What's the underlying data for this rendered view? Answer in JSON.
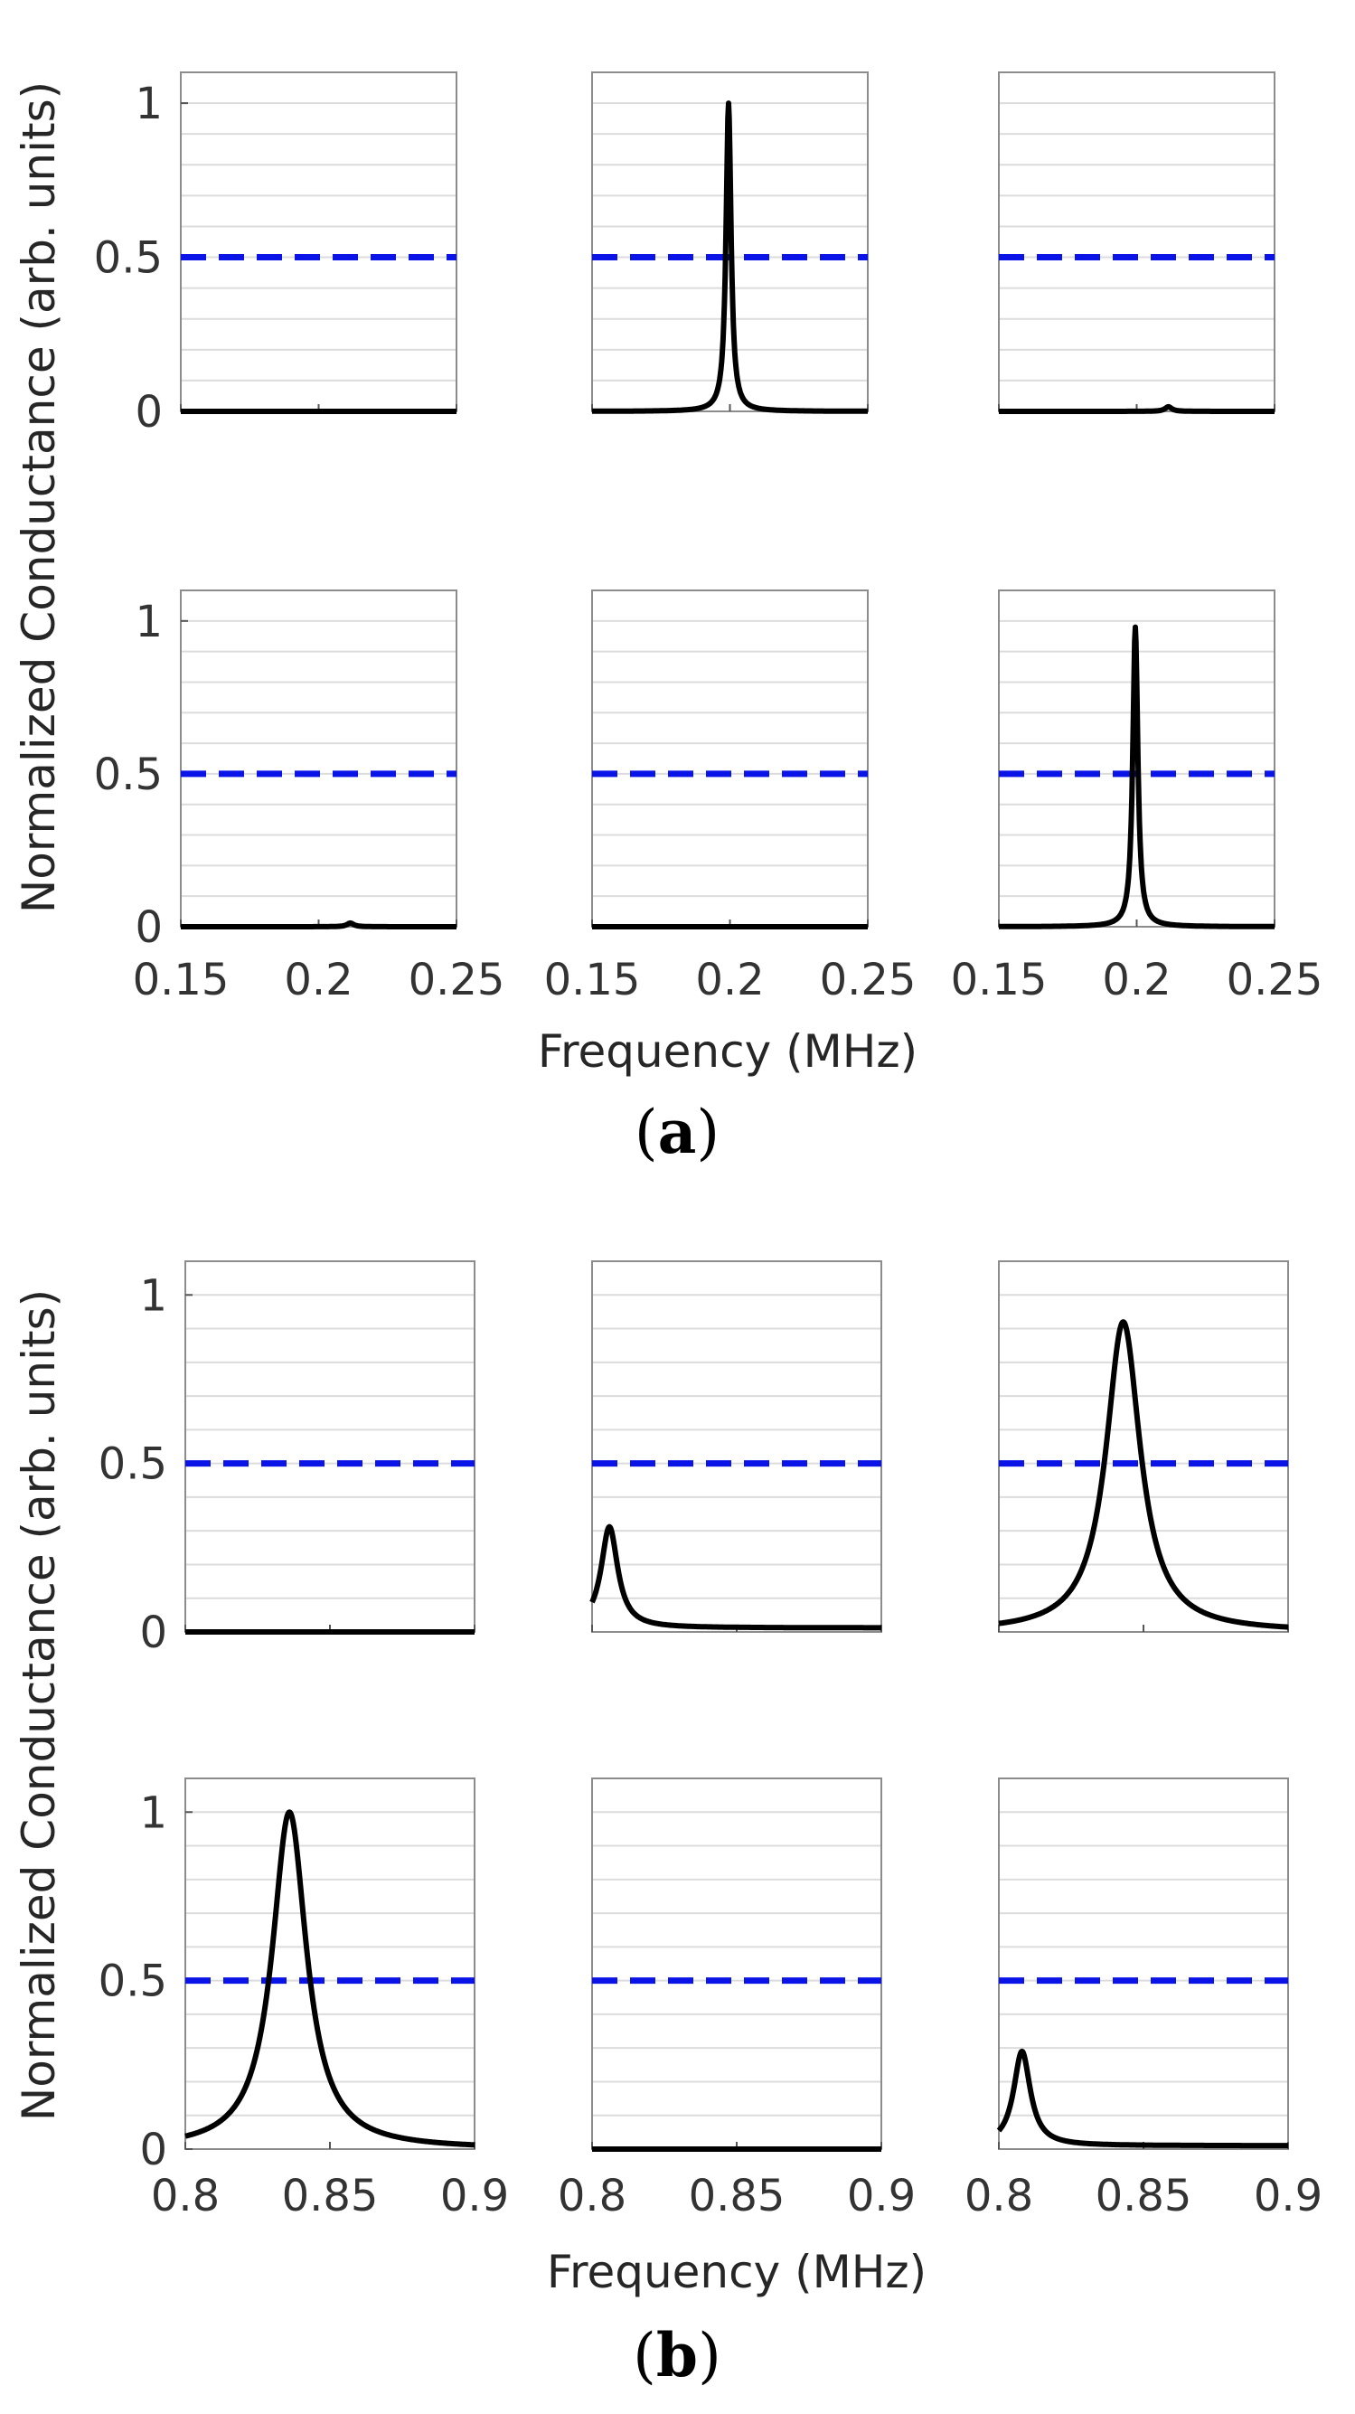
{
  "figure": {
    "subfigures": [
      {
        "id": "a",
        "open": "(",
        "letter": "a",
        "close": ")"
      },
      {
        "id": "b",
        "open": "(",
        "letter": "b",
        "close": ")"
      }
    ]
  },
  "chart_data": [
    {
      "type": "line",
      "panel": "a",
      "grid_layout": "2x3",
      "ylabel": "Normalized Conductance (arb. units)",
      "xlabel": "Frequency (MHz)",
      "xlim": [
        0.15,
        0.25
      ],
      "ylim": [
        0,
        1.1
      ],
      "xticks": [
        0.15,
        0.2,
        0.25
      ],
      "xtick_labels": [
        "0.15",
        "0.2",
        "0.25"
      ],
      "yticks": [
        0,
        0.5,
        1
      ],
      "ytick_labels": [
        "0",
        "0.5",
        "1"
      ],
      "threshold": {
        "value": 0.5,
        "color": "#0a14e6",
        "style": "dashed"
      },
      "curve_color": "#000000",
      "subplots": [
        {
          "row": 1,
          "col": 1,
          "peaks": [
            {
              "f0": 0.2,
              "amplitude": 0.0,
              "width": 0.002
            }
          ],
          "baseline": 0.0
        },
        {
          "row": 1,
          "col": 2,
          "peaks": [
            {
              "f0": 0.1995,
              "amplitude": 1.0,
              "width": 0.0011
            }
          ],
          "baseline": 0.0
        },
        {
          "row": 1,
          "col": 3,
          "peaks": [
            {
              "f0": 0.2115,
              "amplitude": 0.015,
              "width": 0.0015
            }
          ],
          "baseline": 0.0
        },
        {
          "row": 2,
          "col": 1,
          "peaks": [
            {
              "f0": 0.2115,
              "amplitude": 0.012,
              "width": 0.0015
            }
          ],
          "baseline": 0.0
        },
        {
          "row": 2,
          "col": 2,
          "peaks": [
            {
              "f0": 0.2,
              "amplitude": 0.0,
              "width": 0.002
            }
          ],
          "baseline": 0.0
        },
        {
          "row": 2,
          "col": 3,
          "peaks": [
            {
              "f0": 0.1995,
              "amplitude": 0.98,
              "width": 0.0011
            }
          ],
          "baseline": 0.0
        }
      ]
    },
    {
      "type": "line",
      "panel": "b",
      "grid_layout": "2x3",
      "ylabel": "Normalized Conductance (arb. units)",
      "xlabel": "Frequency (MHz)",
      "xlim": [
        0.8,
        0.9
      ],
      "ylim": [
        0,
        1.1
      ],
      "xticks": [
        0.8,
        0.85,
        0.9
      ],
      "xtick_labels": [
        "0.8",
        "0.85",
        "0.9"
      ],
      "yticks": [
        0,
        0.5,
        1
      ],
      "ytick_labels": [
        "0",
        "0.5",
        "1"
      ],
      "threshold": {
        "value": 0.5,
        "color": "#0a14e6",
        "style": "dashed"
      },
      "curve_color": "#000000",
      "subplots": [
        {
          "row": 1,
          "col": 1,
          "peaks": [
            {
              "f0": 0.85,
              "amplitude": 0.0,
              "width": 0.005
            }
          ],
          "baseline": 0.0
        },
        {
          "row": 1,
          "col": 2,
          "peaks": [
            {
              "f0": 0.806,
              "amplitude": 0.3,
              "width": 0.0035
            }
          ],
          "baseline": 0.012
        },
        {
          "row": 1,
          "col": 3,
          "peaks": [
            {
              "f0": 0.843,
              "amplitude": 0.92,
              "width": 0.0072
            }
          ],
          "baseline": 0.0
        },
        {
          "row": 2,
          "col": 1,
          "peaks": [
            {
              "f0": 0.836,
              "amplitude": 1.0,
              "width": 0.0072
            }
          ],
          "baseline": 0.0
        },
        {
          "row": 2,
          "col": 2,
          "peaks": [
            {
              "f0": 0.85,
              "amplitude": 0.0,
              "width": 0.005
            }
          ],
          "baseline": 0.0
        },
        {
          "row": 2,
          "col": 3,
          "peaks": [
            {
              "f0": 0.808,
              "amplitude": 0.28,
              "width": 0.0035
            }
          ],
          "baseline": 0.01
        }
      ]
    }
  ]
}
